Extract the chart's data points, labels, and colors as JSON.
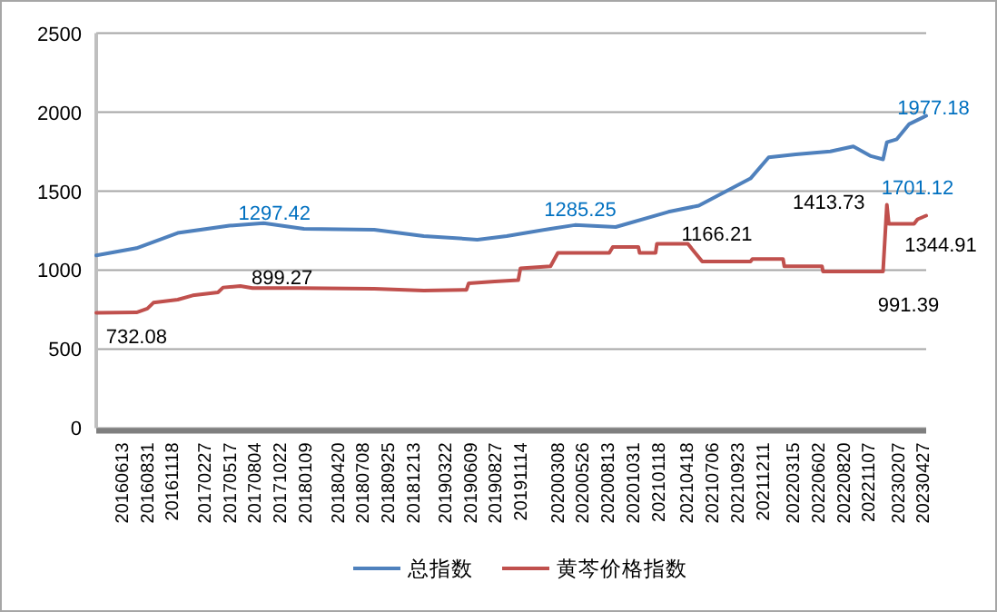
{
  "chart_data": {
    "type": "line",
    "xlim": [
      "2016-03-26",
      "2023-05-07"
    ],
    "ylim": [
      0,
      2500
    ],
    "yticks": [
      0,
      500,
      1000,
      1500,
      2000,
      2500
    ],
    "xticks": [
      {
        "value": "2016-06-13",
        "label": "20160613"
      },
      {
        "value": "2016-08-31",
        "label": "20160831"
      },
      {
        "value": "2016-11-18",
        "label": "20161118"
      },
      {
        "value": "2017-02-27",
        "label": "20170227"
      },
      {
        "value": "2017-05-17",
        "label": "20170517"
      },
      {
        "value": "2017-08-04",
        "label": "20170804"
      },
      {
        "value": "2017-10-22",
        "label": "20171022"
      },
      {
        "value": "2018-01-09",
        "label": "20180109"
      },
      {
        "value": "2018-04-20",
        "label": "20180420"
      },
      {
        "value": "2018-07-08",
        "label": "20180708"
      },
      {
        "value": "2018-09-25",
        "label": "20180925"
      },
      {
        "value": "2018-12-13",
        "label": "20181213"
      },
      {
        "value": "2019-03-22",
        "label": "20190322"
      },
      {
        "value": "2019-06-09",
        "label": "20190609"
      },
      {
        "value": "2019-08-27",
        "label": "20190827"
      },
      {
        "value": "2019-11-14",
        "label": "20191114"
      },
      {
        "value": "2020-03-08",
        "label": "20200308"
      },
      {
        "value": "2020-05-26",
        "label": "20200526"
      },
      {
        "value": "2020-08-13",
        "label": "20200813"
      },
      {
        "value": "2020-10-31",
        "label": "20201031"
      },
      {
        "value": "2021-01-18",
        "label": "20210118"
      },
      {
        "value": "2021-04-18",
        "label": "20210418"
      },
      {
        "value": "2021-07-06",
        "label": "20210706"
      },
      {
        "value": "2021-09-23",
        "label": "20210923"
      },
      {
        "value": "2021-12-11",
        "label": "20211211"
      },
      {
        "value": "2022-03-15",
        "label": "20220315"
      },
      {
        "value": "2022-06-02",
        "label": "20220602"
      },
      {
        "value": "2022-08-20",
        "label": "20220820"
      },
      {
        "value": "2022-11-07",
        "label": "20221107"
      },
      {
        "value": "2023-02-07",
        "label": "20230207"
      },
      {
        "value": "2023-04-27",
        "label": "20230427"
      }
    ],
    "grid": "y",
    "legend": "bottom",
    "series": [
      {
        "name": "总指数",
        "color": "#4f81bd",
        "x": [
          "2016-03-26",
          "2016-07-30",
          "2016-12-06",
          "2017-05-17",
          "2017-09-01",
          "2018-01-05",
          "2018-08-13",
          "2019-01-15",
          "2019-07-02",
          "2019-10-02",
          "2020-02-16",
          "2020-05-02",
          "2020-09-07",
          "2021-02-19",
          "2021-05-25",
          "2021-09-10",
          "2021-11-03",
          "2021-12-30",
          "2022-03-25",
          "2022-07-11",
          "2022-09-21",
          "2022-11-15",
          "2022-12-23",
          "2023-01-04",
          "2023-02-04",
          "2023-03-15",
          "2023-05-07"
        ],
        "values": [
          1093,
          1139,
          1235,
          1281,
          1297.42,
          1262,
          1256,
          1216,
          1193,
          1216,
          1262,
          1285.25,
          1273,
          1369,
          1408,
          1523,
          1580,
          1714,
          1733,
          1752,
          1783,
          1722,
          1701.12,
          1810,
          1829,
          1925,
          1977.18
        ]
      },
      {
        "name": "黄芩价格指数",
        "color": "#c0504d",
        "x": [
          "2016-03-26",
          "2016-07-30",
          "2016-09-02",
          "2016-09-21",
          "2016-12-06",
          "2017-01-22",
          "2017-04-11",
          "2017-04-27",
          "2017-06-20",
          "2017-07-28",
          "2017-12-19",
          "2018-08-13",
          "2019-01-15",
          "2019-05-29",
          "2019-06-05",
          "2019-08-25",
          "2019-11-07",
          "2019-11-14",
          "2020-02-16",
          "2020-03-10",
          "2020-08-18",
          "2020-08-29",
          "2020-11-17",
          "2020-11-21",
          "2021-01-10",
          "2021-01-14",
          "2021-04-21",
          "2021-06-05",
          "2021-11-03",
          "2021-11-09",
          "2022-02-13",
          "2022-02-17",
          "2022-06-15",
          "2022-06-18",
          "2022-12-23",
          "2023-01-04",
          "2023-01-10",
          "2023-03-30",
          "2023-04-10",
          "2023-05-07"
        ],
        "values": [
          730,
          732.08,
          756,
          794,
          813,
          840,
          859,
          890,
          899.27,
          886,
          886,
          882,
          871,
          875,
          917,
          928,
          936,
          1012,
          1024,
          1109,
          1109,
          1147,
          1147,
          1109,
          1109,
          1166.21,
          1166.21,
          1054,
          1054,
          1070,
          1070,
          1024,
          1024,
          991.39,
          991.39,
          1413.73,
          1293,
          1293,
          1322,
          1344.91
        ]
      }
    ],
    "annotations": [
      {
        "text": "732.08",
        "x": "2016-07-30",
        "y": 732.08
      },
      {
        "text": "899.27",
        "x": "2017-06-20",
        "y": 899.27
      },
      {
        "text": "1297.42",
        "x": "2017-09-01",
        "y": 1297.42
      },
      {
        "text": "1285.25",
        "x": "2020-05-02",
        "y": 1285.25
      },
      {
        "text": "1166.21",
        "x": "2021-01-14",
        "y": 1166.21
      },
      {
        "text": "1413.73",
        "x": "2023-01-04",
        "y": 1413.73
      },
      {
        "text": "991.39",
        "x": "2022-12-23",
        "y": 991.39
      },
      {
        "text": "1701.12",
        "x": "2022-12-23",
        "y": 1701.12
      },
      {
        "text": "1977.18",
        "x": "2023-05-07",
        "y": 1977.18
      },
      {
        "text": "1344.91",
        "x": "2023-05-07",
        "y": 1344.91
      }
    ]
  }
}
